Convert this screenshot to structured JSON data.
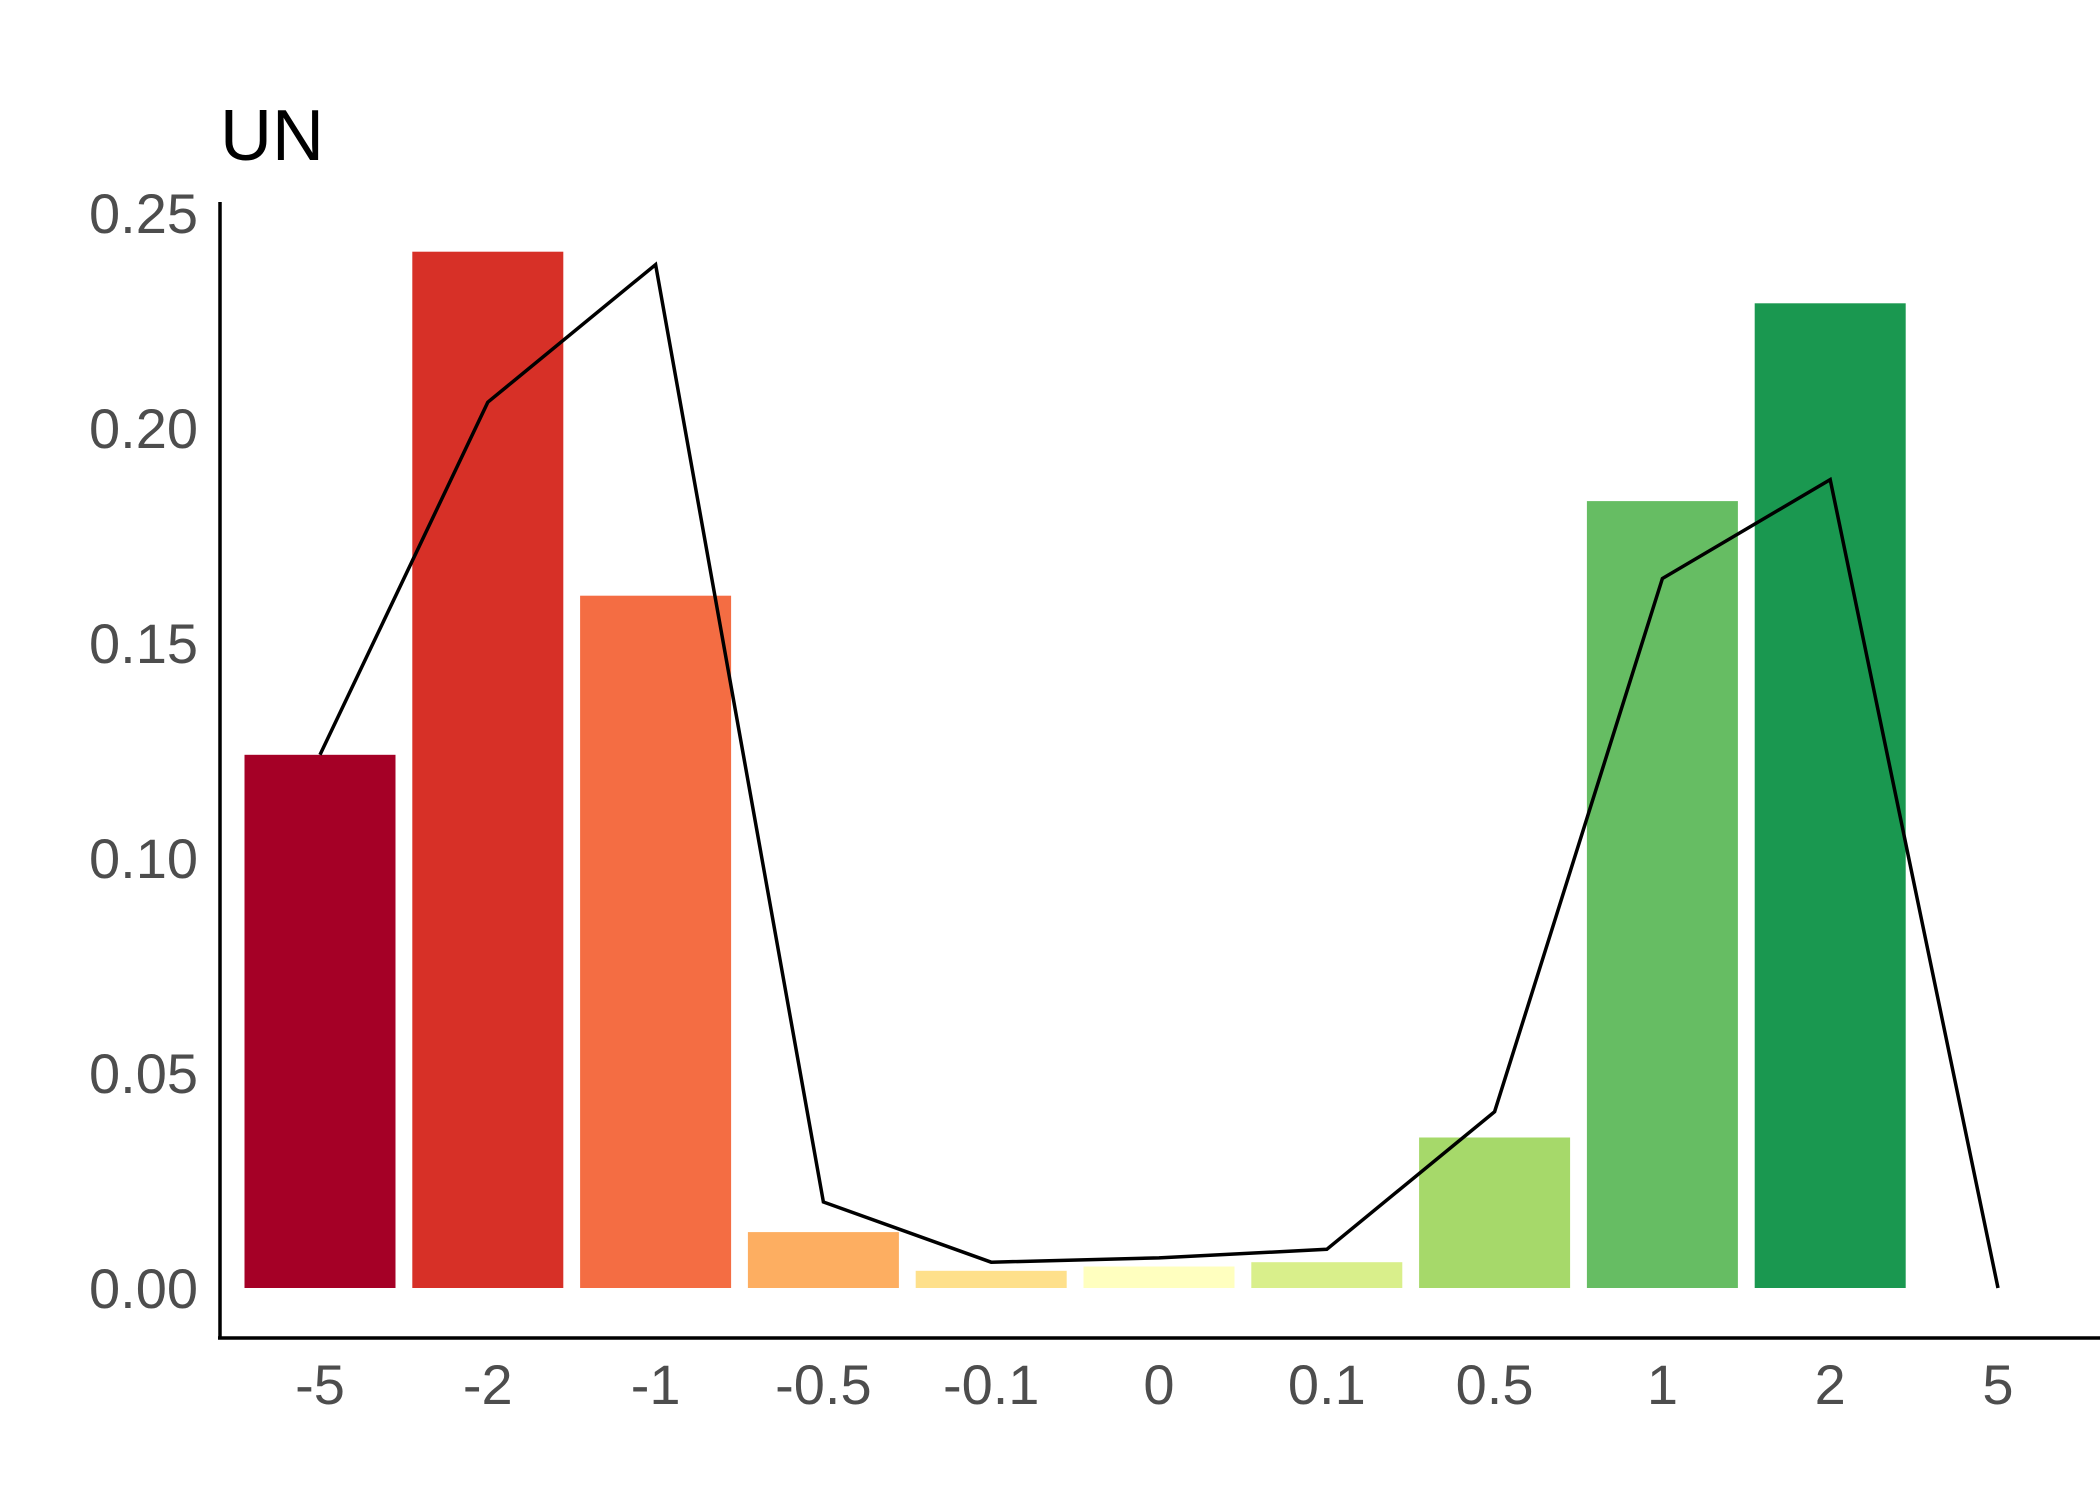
{
  "chart_data": {
    "type": "bar",
    "title": "UN",
    "xlabel": "",
    "ylabel": "",
    "categories": [
      "-5",
      "-2",
      "-1",
      "-0.5",
      "-0.1",
      "0",
      "0.1",
      "0.5",
      "1",
      "2",
      "5"
    ],
    "ylim": [
      0,
      0.25
    ],
    "yticks": [
      "0.00",
      "0.05",
      "0.10",
      "0.15",
      "0.20",
      "0.25"
    ],
    "grid": false,
    "bars": {
      "categories": [
        "-5",
        "-2",
        "-1",
        "-0.5",
        "-0.1",
        "0",
        "0.1",
        "0.5",
        "1",
        "2"
      ],
      "values": [
        0.124,
        0.241,
        0.161,
        0.013,
        0.004,
        0.005,
        0.006,
        0.035,
        0.183,
        0.229
      ],
      "colors": [
        "#a50026",
        "#d73027",
        "#f46d43",
        "#fdae61",
        "#fee08b",
        "#ffffbf",
        "#d9ef8b",
        "#a6d96a",
        "#66bd63",
        "#1a9850"
      ]
    },
    "line": {
      "categories": [
        "-5",
        "-2",
        "-1",
        "-0.5",
        "-0.1",
        "0",
        "0.1",
        "0.5",
        "1",
        "2",
        "5"
      ],
      "values": [
        0.124,
        0.206,
        0.238,
        0.02,
        0.006,
        0.007,
        0.009,
        0.041,
        0.165,
        0.188,
        0.0
      ],
      "color": "#000000"
    }
  }
}
